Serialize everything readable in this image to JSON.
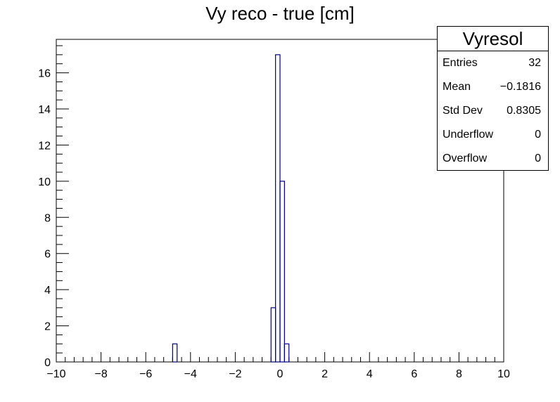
{
  "title": "Vy reco - true [cm]",
  "stats": {
    "name": "Vyresol",
    "rows": [
      {
        "label": "Entries",
        "value": "32"
      },
      {
        "label": "Mean",
        "value": "−0.1816"
      },
      {
        "label": "Std Dev",
        "value": "0.8305"
      },
      {
        "label": "Underflow",
        "value": "0"
      },
      {
        "label": "Overflow",
        "value": "0"
      }
    ]
  },
  "colors": {
    "line": "#000080",
    "axis": "#000000"
  },
  "chart_data": {
    "type": "bar",
    "title": "Vy reco - true [cm]",
    "xlabel": "",
    "ylabel": "",
    "xlim": [
      -10,
      10
    ],
    "ylim": [
      0,
      17.85
    ],
    "bin_width": 0.2,
    "bins": [
      {
        "x": -4.8,
        "count": 1
      },
      {
        "x": -0.4,
        "count": 3
      },
      {
        "x": -0.2,
        "count": 17
      },
      {
        "x": 0.0,
        "count": 10
      },
      {
        "x": 0.2,
        "count": 1
      }
    ],
    "x_ticks": [
      "−10",
      "−8",
      "−6",
      "−4",
      "−2",
      "0",
      "2",
      "4",
      "6",
      "8",
      "10"
    ],
    "y_ticks": [
      "0",
      "2",
      "4",
      "6",
      "8",
      "10",
      "12",
      "14",
      "16"
    ],
    "grid": false
  }
}
